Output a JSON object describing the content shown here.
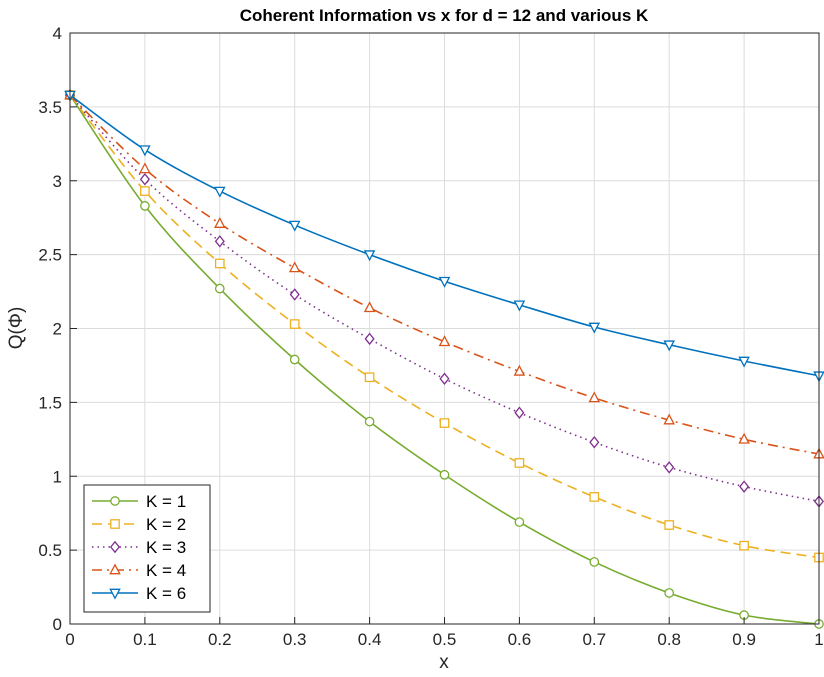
{
  "chart_data": {
    "type": "line",
    "title": "Coherent Information vs x for d = 12 and various K",
    "xlabel": "x",
    "ylabel": "Q(Φ)",
    "xlim": [
      0,
      1
    ],
    "ylim": [
      0,
      4
    ],
    "xticks": [
      "0",
      "0.1",
      "0.2",
      "0.3",
      "0.4",
      "0.5",
      "0.6",
      "0.7",
      "0.8",
      "0.9",
      "1"
    ],
    "yticks": [
      "0",
      "0.5",
      "1",
      "1.5",
      "2",
      "2.5",
      "3",
      "3.5",
      "4"
    ],
    "grid": true,
    "legend_location": "bottom-left",
    "series": [
      {
        "name": "K = 1",
        "color": "#77AC30",
        "line_style": "solid",
        "marker": "circle",
        "x": [
          0,
          0.1,
          0.2,
          0.3,
          0.4,
          0.5,
          0.6,
          0.7,
          0.8,
          0.9,
          1
        ],
        "y": [
          3.58,
          2.83,
          2.27,
          1.79,
          1.37,
          1.01,
          0.69,
          0.42,
          0.21,
          0.06,
          0.0
        ]
      },
      {
        "name": "K = 2",
        "color": "#EDB120",
        "line_style": "dashed",
        "marker": "square",
        "x": [
          0,
          0.1,
          0.2,
          0.3,
          0.4,
          0.5,
          0.6,
          0.7,
          0.8,
          0.9,
          1
        ],
        "y": [
          3.58,
          2.93,
          2.44,
          2.03,
          1.67,
          1.36,
          1.09,
          0.86,
          0.67,
          0.53,
          0.45
        ]
      },
      {
        "name": "K = 3",
        "color": "#7E2F8E",
        "line_style": "dotted",
        "marker": "diamond",
        "x": [
          0,
          0.1,
          0.2,
          0.3,
          0.4,
          0.5,
          0.6,
          0.7,
          0.8,
          0.9,
          1
        ],
        "y": [
          3.58,
          3.01,
          2.59,
          2.23,
          1.93,
          1.66,
          1.43,
          1.23,
          1.06,
          0.93,
          0.83
        ]
      },
      {
        "name": "K = 4",
        "color": "#D95319",
        "line_style": "dashdot",
        "marker": "triangle-up",
        "x": [
          0,
          0.1,
          0.2,
          0.3,
          0.4,
          0.5,
          0.6,
          0.7,
          0.8,
          0.9,
          1
        ],
        "y": [
          3.58,
          3.08,
          2.71,
          2.41,
          2.14,
          1.91,
          1.71,
          1.53,
          1.38,
          1.25,
          1.15
        ]
      },
      {
        "name": "K = 6",
        "color": "#0072BD",
        "line_style": "solid",
        "marker": "triangle-down",
        "x": [
          0,
          0.1,
          0.2,
          0.3,
          0.4,
          0.5,
          0.6,
          0.7,
          0.8,
          0.9,
          1
        ],
        "y": [
          3.58,
          3.21,
          2.93,
          2.7,
          2.5,
          2.32,
          2.16,
          2.01,
          1.89,
          1.78,
          1.68
        ]
      }
    ]
  }
}
